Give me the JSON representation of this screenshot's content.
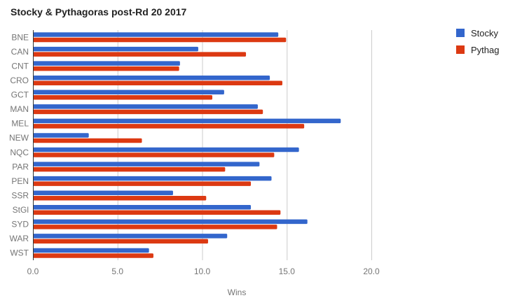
{
  "chart_data": {
    "type": "bar",
    "orientation": "horizontal",
    "title": "Stocky & Pythagoras post-Rd 20 2017",
    "xlabel": "Wins",
    "ylabel": "",
    "xlim": [
      0,
      20
    ],
    "xticks": [
      "0.0",
      "5.0",
      "10.0",
      "15.0",
      "20.0"
    ],
    "xtick_values": [
      0,
      5,
      10,
      15,
      20
    ],
    "grid": true,
    "legend_position": "right",
    "categories": [
      "BNE",
      "CAN",
      "CNT",
      "CRO",
      "GCT",
      "MAN",
      "MEL",
      "NEW",
      "NQC",
      "PAR",
      "PEN",
      "SSR",
      "StGl",
      "SYD",
      "WAR",
      "WST"
    ],
    "series": [
      {
        "name": "Stocky",
        "color": "#3366cc",
        "values": [
          14.5,
          9.77,
          8.69,
          14.0,
          11.3,
          13.29,
          18.19,
          3.3,
          15.72,
          13.39,
          14.1,
          8.28,
          12.88,
          16.22,
          11.48,
          6.86
        ]
      },
      {
        "name": "Pythag",
        "color": "#dc3912",
        "values": [
          14.96,
          12.59,
          8.64,
          14.74,
          10.6,
          13.59,
          16.03,
          6.44,
          14.26,
          11.36,
          12.88,
          10.24,
          14.63,
          14.43,
          10.35,
          7.12
        ]
      }
    ]
  }
}
